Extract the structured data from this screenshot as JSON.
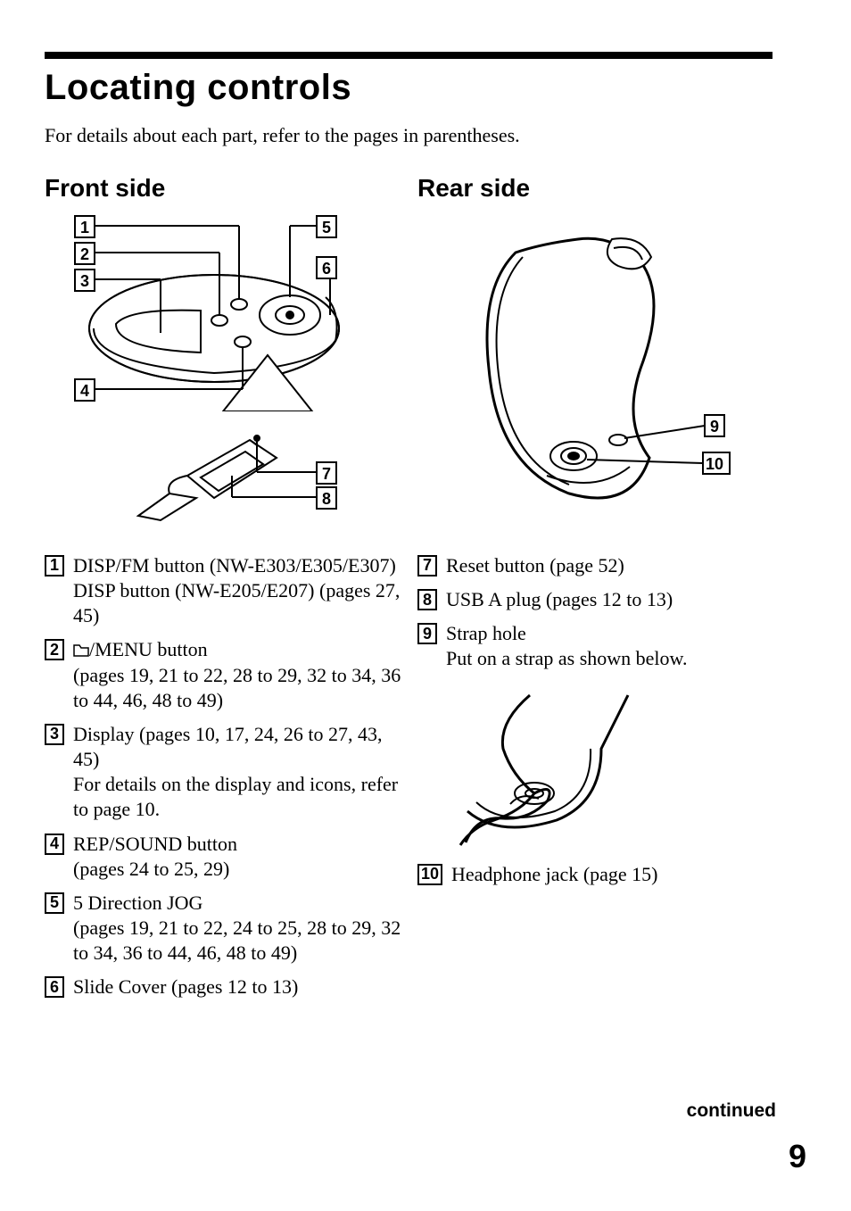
{
  "page": {
    "title": "Locating controls",
    "intro": "For details about each part, refer to the pages in parentheses.",
    "continued": "continued",
    "number": "9"
  },
  "front": {
    "heading": "Front side",
    "items": [
      {
        "n": "1",
        "text": "DISP/FM button (NW-E303/E305/E307)\nDISP button (NW-E205/E207) (pages 27, 45)"
      },
      {
        "n": "2",
        "text": "/MENU button\n(pages 19, 21 to 22, 28 to 29, 32 to 34, 36 to 44, 46, 48 to 49)",
        "hasFolderIcon": true
      },
      {
        "n": "3",
        "text": "Display (pages 10, 17, 24, 26 to 27, 43, 45)\nFor details on the display and icons, refer to page 10."
      },
      {
        "n": "4",
        "text": "REP/SOUND button\n(pages 24 to 25, 29)"
      },
      {
        "n": "5",
        "text": "5 Direction JOG\n(pages 19, 21 to 22, 24 to 25, 28 to 29, 32 to 34, 36 to 44, 46, 48 to 49)"
      },
      {
        "n": "6",
        "text": "Slide Cover (pages 12 to 13)"
      }
    ],
    "diagram": {
      "callouts": [
        "1",
        "2",
        "3",
        "4",
        "5",
        "6",
        "7",
        "8"
      ],
      "stroke": "#000000",
      "fill": "#ffffff"
    }
  },
  "rear": {
    "heading": "Rear side",
    "items": [
      {
        "n": "7",
        "text": "Reset button (page 52)"
      },
      {
        "n": "8",
        "text": "USB A plug (pages 12 to 13)"
      },
      {
        "n": "9",
        "text": "Strap hole\nPut on a strap as shown below."
      },
      {
        "n": "10",
        "text": "Headphone jack (page 15)"
      }
    ],
    "diagram": {
      "callouts": [
        "9",
        "10"
      ],
      "stroke": "#000000",
      "fill": "#ffffff"
    }
  },
  "style": {
    "rule_color": "#000000",
    "heading_font": "Arial",
    "body_font": "Times New Roman",
    "numbox_border": "#000000"
  }
}
